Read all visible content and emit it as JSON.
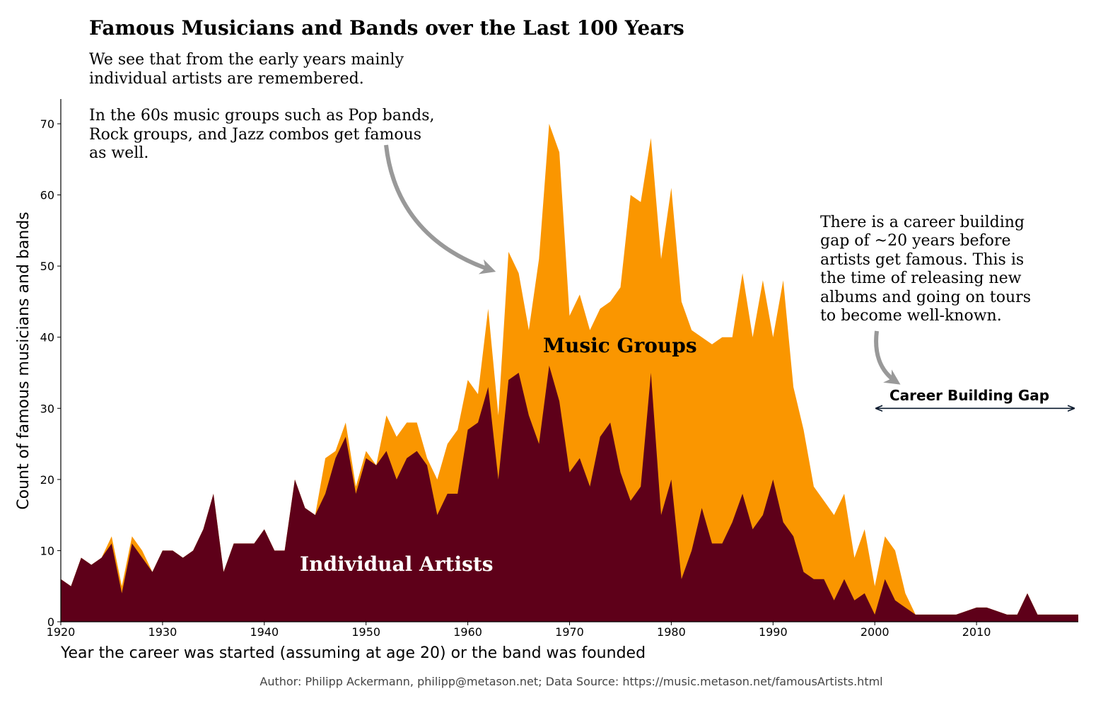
{
  "chart_data": {
    "type": "area",
    "title": "Famous Musicians and Bands over the Last 100 Years",
    "xlabel": "Year the career was started (assuming at age 20) or the band was founded",
    "ylabel": "Count of famous musicians and bands",
    "xlim": [
      1920,
      2020
    ],
    "ylim": [
      0,
      73
    ],
    "x_ticks": [
      "1920",
      "1930",
      "1940",
      "1950",
      "1960",
      "1970",
      "1980",
      "1990",
      "2000",
      "2010"
    ],
    "y_ticks": [
      "0",
      "10",
      "20",
      "30",
      "40",
      "50",
      "60",
      "70"
    ],
    "grid": false,
    "stacked": true,
    "x": [
      1920,
      1921,
      1922,
      1923,
      1924,
      1925,
      1926,
      1927,
      1928,
      1929,
      1930,
      1931,
      1932,
      1933,
      1934,
      1935,
      1936,
      1937,
      1938,
      1939,
      1940,
      1941,
      1942,
      1943,
      1944,
      1945,
      1946,
      1947,
      1948,
      1949,
      1950,
      1951,
      1952,
      1953,
      1954,
      1955,
      1956,
      1957,
      1958,
      1959,
      1960,
      1961,
      1962,
      1963,
      1964,
      1965,
      1966,
      1967,
      1968,
      1969,
      1970,
      1971,
      1972,
      1973,
      1974,
      1975,
      1976,
      1977,
      1978,
      1979,
      1980,
      1981,
      1982,
      1983,
      1984,
      1985,
      1986,
      1987,
      1988,
      1989,
      1990,
      1991,
      1992,
      1993,
      1994,
      1995,
      1996,
      1997,
      1998,
      1999,
      2000,
      2001,
      2002,
      2003,
      2004,
      2005,
      2006,
      2007,
      2008,
      2009,
      2010,
      2011,
      2012,
      2013,
      2014,
      2015,
      2016,
      2017,
      2018,
      2019,
      2020
    ],
    "series": [
      {
        "name": "Individual Artists",
        "color": "#5e0019",
        "values": [
          6,
          5,
          9,
          8,
          9,
          11,
          4,
          11,
          9,
          7,
          10,
          10,
          9,
          10,
          13,
          18,
          7,
          11,
          11,
          11,
          13,
          10,
          10,
          20,
          16,
          15,
          18,
          23,
          26,
          18,
          23,
          22,
          24,
          20,
          23,
          24,
          22,
          15,
          18,
          18,
          27,
          28,
          33,
          20,
          34,
          35,
          29,
          25,
          36,
          31,
          21,
          23,
          19,
          26,
          28,
          21,
          17,
          19,
          35,
          15,
          20,
          6,
          10,
          16,
          11,
          11,
          14,
          18,
          13,
          15,
          20,
          14,
          12,
          7,
          6,
          6,
          3,
          6,
          3,
          4,
          1,
          6,
          3,
          2,
          1,
          1,
          1,
          1,
          1,
          1.5,
          2,
          2,
          1.5,
          1,
          1,
          4,
          1,
          1,
          1,
          1,
          1
        ]
      },
      {
        "name": "Music Groups",
        "color": "#fa9600",
        "values": [
          0,
          0,
          0,
          0,
          0,
          1,
          1,
          1,
          1,
          0,
          0,
          0,
          0,
          0,
          0,
          0,
          0,
          0,
          0,
          0,
          0,
          0,
          0,
          0,
          0,
          0,
          5,
          1,
          2,
          1,
          1,
          0,
          5,
          6,
          5,
          4,
          1,
          5,
          7,
          9,
          7,
          4,
          11,
          9,
          18,
          14,
          12,
          26,
          34,
          35,
          22,
          23,
          22,
          18,
          17,
          26,
          43,
          40,
          33,
          36,
          41,
          39,
          31,
          24,
          28,
          29,
          26,
          31,
          27,
          33,
          20,
          34,
          21,
          20,
          13,
          11,
          12,
          12,
          6,
          9,
          4,
          6,
          7,
          2,
          0,
          0,
          0,
          0,
          0,
          0,
          0,
          0,
          0,
          0,
          0,
          0,
          0,
          0,
          0,
          0,
          0
        ]
      }
    ],
    "annotations": {
      "subtitle_line1": "We see that from the early years mainly",
      "subtitle_line2": "individual artists are remembered.",
      "sixties_line1": "In the 60s music groups such as Pop bands,",
      "sixties_line2": "Rock groups, and Jazz combos get famous",
      "sixties_line3": "as well.",
      "gap_line1": "There is a career building",
      "gap_line2": "gap of ~20 years before",
      "gap_line3": "artists get famous. This is",
      "gap_line4": "the time of releasing new",
      "gap_line5": "albums and going on tours",
      "gap_line6": "to become well-known.",
      "music_groups_label": "Music Groups",
      "individual_artists_label": "Individual Artists",
      "career_gap_label": "Career Building Gap",
      "career_gap_range": [
        2000,
        2020
      ],
      "career_gap_y": 30
    },
    "footer": "Author: Philipp Ackermann, philipp@metason.net;  Data Source: https://music.metason.net/famousArtists.html"
  }
}
